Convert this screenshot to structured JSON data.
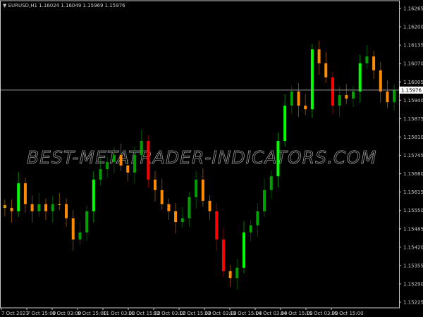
{
  "chart_data": {
    "type": "candlestick",
    "symbol_header": "EURUSD,H1  1.16024 1.16049 1.15969 1.15976",
    "watermark": "BEST-METATRADER-INDICATORS.COM",
    "current_price": 1.15976,
    "current_price_label": "1.15976",
    "ylim": [
      1.152,
      1.1629
    ],
    "y_ticks": [
      "1.16265",
      "1.16200",
      "1.16135",
      "1.16070",
      "1.16005",
      "1.15940",
      "1.15875",
      "1.15810",
      "1.15745",
      "1.15680",
      "1.15615",
      "1.15550",
      "1.15485",
      "1.15420",
      "1.15355",
      "1.15290",
      "1.15225"
    ],
    "x_ticks": [
      "7 Oct 2021",
      "7 Oct 15:00",
      "8 Oct 03:00",
      "8 Oct 15:00",
      "11 Oct 03:00",
      "11 Oct 15:00",
      "12 Oct 03:00",
      "12 Oct 15:00",
      "13 Oct 03:00",
      "13 Oct 15:00",
      "14 Oct 03:00",
      "14 Oct 15:00",
      "15 Oct 03:00",
      "15 Oct 15:00"
    ],
    "closes": [
      1.15559,
      1.15547,
      1.15646,
      1.15572,
      1.15547,
      1.15572,
      1.15547,
      1.15572,
      1.15572,
      1.15522,
      1.15447,
      1.15472,
      1.15547,
      1.15659,
      1.15696,
      1.15721,
      1.15746,
      1.15709,
      1.15684,
      1.15746,
      1.15796,
      1.15659,
      1.15622,
      1.15572,
      1.15547,
      1.15509,
      1.15522,
      1.15597,
      1.15659,
      1.15584,
      1.15547,
      1.15447,
      1.15335,
      1.1531,
      1.15347,
      1.15472,
      1.15497,
      1.15547,
      1.15622,
      1.15671,
      1.15796,
      1.15921,
      1.15971,
      1.15921,
      1.15908,
      1.1612,
      1.16071,
      1.16021,
      1.15921,
      1.15958,
      1.15946,
      1.15971,
      1.16071,
      1.16095,
      1.16046,
      1.15971,
      1.15933,
      1.15976
    ],
    "colors": {
      "up_strong": "#00ff00",
      "up": "#00a000",
      "down_strong": "#ff0000",
      "down": "#ff8c00",
      "neutral": "#e0a000",
      "grid_axis": "#c8c8c8",
      "price_line": "#9a9a9a"
    },
    "grid": false
  }
}
